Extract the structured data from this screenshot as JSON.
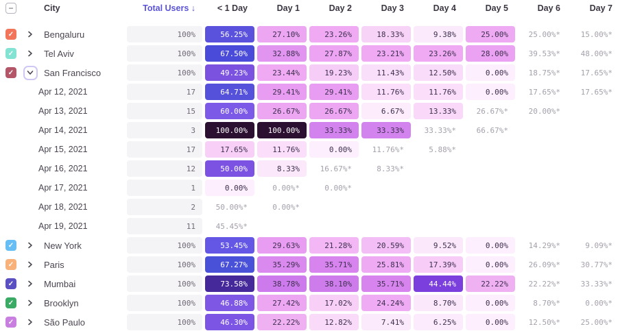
{
  "header": {
    "select_all": "indeterminate",
    "select_all_glyph": "−",
    "city_label": "City",
    "total_label": "Total Users ↓",
    "day_columns": [
      "< 1 Day",
      "Day 1",
      "Day 2",
      "Day 3",
      "Day 4",
      "Day 5",
      "Day 6",
      "Day 7"
    ],
    "accent_color": "#5a53d8"
  },
  "rows": [
    {
      "type": "city",
      "label": "Bengaluru",
      "checkbox_color": "#f2745b",
      "expanded": false,
      "total": "100%",
      "cells": [
        {
          "t": "56.25%",
          "bg": "#5a52dd",
          "fg": "#ffffff"
        },
        {
          "t": "27.10%",
          "bg": "#eda6f2"
        },
        {
          "t": "23.26%",
          "bg": "#efaaf3"
        },
        {
          "t": "18.33%",
          "bg": "#f8d3f8"
        },
        {
          "t": "9.38%",
          "bg": "#fbe9fc"
        },
        {
          "t": "25.00%",
          "bg": "#eeaaf2"
        },
        {
          "t": "25.00%*",
          "star": true
        },
        {
          "t": "15.00%*",
          "star": true
        }
      ]
    },
    {
      "type": "city",
      "label": "Tel Aviv",
      "checkbox_color": "#82e3d2",
      "expanded": false,
      "total": "100%",
      "cells": [
        {
          "t": "67.50%",
          "bg": "#4a4bd8",
          "fg": "#ffffff"
        },
        {
          "t": "32.88%",
          "bg": "#e294f1"
        },
        {
          "t": "27.87%",
          "bg": "#eda4f2"
        },
        {
          "t": "23.21%",
          "bg": "#efaaf3"
        },
        {
          "t": "23.26%",
          "bg": "#efaaf3"
        },
        {
          "t": "28.00%",
          "bg": "#eca2f2"
        },
        {
          "t": "39.53%*",
          "star": true
        },
        {
          "t": "48.00%*",
          "star": true
        }
      ]
    },
    {
      "type": "city",
      "label": "San Francisco",
      "checkbox_color": "#b25668",
      "expanded": true,
      "total": "100%",
      "cells": [
        {
          "t": "49.23%",
          "bg": "#7b51e0",
          "fg": "#ffffff"
        },
        {
          "t": "23.44%",
          "bg": "#efaaf3"
        },
        {
          "t": "19.23%",
          "bg": "#f6cdf7"
        },
        {
          "t": "11.43%",
          "bg": "#fadffa"
        },
        {
          "t": "12.50%",
          "bg": "#f9dcf9"
        },
        {
          "t": "0.00%",
          "bg": "#fdeffd"
        },
        {
          "t": "18.75%*",
          "star": true
        },
        {
          "t": "17.65%*",
          "star": true
        }
      ]
    },
    {
      "type": "date",
      "label": "Apr 12, 2021",
      "total": "17",
      "cells": [
        {
          "t": "64.71%",
          "bg": "#5551da",
          "fg": "#ffffff"
        },
        {
          "t": "29.41%",
          "bg": "#e99df2"
        },
        {
          "t": "29.41%",
          "bg": "#e99df2"
        },
        {
          "t": "11.76%",
          "bg": "#fadefa"
        },
        {
          "t": "11.76%",
          "bg": "#fadefa"
        },
        {
          "t": "0.00%",
          "bg": "#fdeffd"
        },
        {
          "t": "17.65%*",
          "star": true
        },
        {
          "t": "17.65%*",
          "star": true
        }
      ]
    },
    {
      "type": "date",
      "label": "Apr 13, 2021",
      "total": "15",
      "cells": [
        {
          "t": "60.00%",
          "bg": "#7c59e7",
          "fg": "#ffffff"
        },
        {
          "t": "26.67%",
          "bg": "#eda6f2"
        },
        {
          "t": "26.67%",
          "bg": "#eda6f2"
        },
        {
          "t": "6.67%",
          "bg": "#fcecfc"
        },
        {
          "t": "13.33%",
          "bg": "#f9d8f9"
        },
        {
          "t": "26.67%*",
          "star": true
        },
        {
          "t": "20.00%*",
          "star": true
        },
        null
      ]
    },
    {
      "type": "date",
      "label": "Apr 14, 2021",
      "total": "3",
      "cells": [
        {
          "t": "100.00%",
          "bg": "#2b1032",
          "fg": "#ffffff"
        },
        {
          "t": "100.00%",
          "bg": "#2b1032",
          "fg": "#ffffff"
        },
        {
          "t": "33.33%",
          "bg": "#d383ee"
        },
        {
          "t": "33.33%",
          "bg": "#d383ee"
        },
        {
          "t": "33.33%*",
          "star": true
        },
        {
          "t": "66.67%*",
          "star": true
        },
        null,
        null
      ]
    },
    {
      "type": "date",
      "label": "Apr 15, 2021",
      "total": "17",
      "cells": [
        {
          "t": "17.65%",
          "bg": "#f7cff7"
        },
        {
          "t": "11.76%",
          "bg": "#fadefa"
        },
        {
          "t": "0.00%",
          "bg": "#fdeffd"
        },
        {
          "t": "11.76%*",
          "star": true
        },
        {
          "t": "5.88%*",
          "star": true
        },
        null,
        null,
        null
      ]
    },
    {
      "type": "date",
      "label": "Apr 16, 2021",
      "total": "12",
      "cells": [
        {
          "t": "50.00%",
          "bg": "#7c52e3",
          "fg": "#ffffff"
        },
        {
          "t": "8.33%",
          "bg": "#fbe9fb"
        },
        {
          "t": "16.67%*",
          "star": true
        },
        {
          "t": "8.33%*",
          "star": true
        },
        null,
        null,
        null,
        null
      ]
    },
    {
      "type": "date",
      "label": "Apr 17, 2021",
      "total": "1",
      "cells": [
        {
          "t": "0.00%",
          "bg": "#fdeffd"
        },
        {
          "t": "0.00%*",
          "star": true
        },
        {
          "t": "0.00%*",
          "star": true
        },
        null,
        null,
        null,
        null,
        null
      ]
    },
    {
      "type": "date",
      "label": "Apr 18, 2021",
      "total": "2",
      "cells": [
        {
          "t": "50.00%*",
          "star": true
        },
        {
          "t": "0.00%*",
          "star": true
        },
        null,
        null,
        null,
        null,
        null,
        null
      ]
    },
    {
      "type": "date",
      "label": "Apr 19, 2021",
      "total": "11",
      "cells": [
        {
          "t": "45.45%*",
          "star": true
        },
        null,
        null,
        null,
        null,
        null,
        null,
        null
      ]
    },
    {
      "type": "city",
      "label": "New York",
      "checkbox_color": "#66bef5",
      "expanded": false,
      "total": "100%",
      "cells": [
        {
          "t": "53.45%",
          "bg": "#6457e5",
          "fg": "#ffffff"
        },
        {
          "t": "29.63%",
          "bg": "#e99df2"
        },
        {
          "t": "21.28%",
          "bg": "#f2b7f4"
        },
        {
          "t": "20.59%",
          "bg": "#f3bef5"
        },
        {
          "t": "9.52%",
          "bg": "#fbe8fb"
        },
        {
          "t": "0.00%",
          "bg": "#fdeffd"
        },
        {
          "t": "14.29%*",
          "star": true
        },
        {
          "t": "9.09%*",
          "star": true
        }
      ]
    },
    {
      "type": "city",
      "label": "Paris",
      "checkbox_color": "#f8b179",
      "expanded": false,
      "total": "100%",
      "cells": [
        {
          "t": "67.27%",
          "bg": "#4a51d9",
          "fg": "#ffffff"
        },
        {
          "t": "35.29%",
          "bg": "#da89ef"
        },
        {
          "t": "35.71%",
          "bg": "#d884ee"
        },
        {
          "t": "25.81%",
          "bg": "#eeabf3"
        },
        {
          "t": "17.39%",
          "bg": "#f7cdf7"
        },
        {
          "t": "0.00%",
          "bg": "#fdeffd"
        },
        {
          "t": "26.09%*",
          "star": true
        },
        {
          "t": "30.77%*",
          "star": true
        }
      ]
    },
    {
      "type": "city",
      "label": "Mumbai",
      "checkbox_color": "#5b50c2",
      "expanded": false,
      "total": "100%",
      "cells": [
        {
          "t": "73.58%",
          "bg": "#45289a",
          "fg": "#ffffff"
        },
        {
          "t": "38.78%",
          "bg": "#cd7bec"
        },
        {
          "t": "38.10%",
          "bg": "#ce7cec"
        },
        {
          "t": "35.71%",
          "bg": "#d884ee"
        },
        {
          "t": "44.44%",
          "bg": "#7a3fdd",
          "fg": "#ffffff"
        },
        {
          "t": "22.22%",
          "bg": "#f0b1f3"
        },
        {
          "t": "22.22%*",
          "star": true
        },
        {
          "t": "33.33%*",
          "star": true
        }
      ]
    },
    {
      "type": "city",
      "label": "Brooklyn",
      "checkbox_color": "#3aaa64",
      "expanded": false,
      "total": "100%",
      "cells": [
        {
          "t": "46.88%",
          "bg": "#7e57e5",
          "fg": "#ffffff"
        },
        {
          "t": "27.42%",
          "bg": "#eda6f2"
        },
        {
          "t": "17.02%",
          "bg": "#f7cff7"
        },
        {
          "t": "24.24%",
          "bg": "#efabf3"
        },
        {
          "t": "8.70%",
          "bg": "#fbe8fb"
        },
        {
          "t": "0.00%",
          "bg": "#fdeffd"
        },
        {
          "t": "8.70%*",
          "star": true
        },
        {
          "t": "0.00%*",
          "star": true
        }
      ]
    },
    {
      "type": "city",
      "label": "São Paulo",
      "checkbox_color": "#c97fe0",
      "expanded": false,
      "total": "100%",
      "cells": [
        {
          "t": "46.30%",
          "bg": "#7d55e4",
          "fg": "#ffffff"
        },
        {
          "t": "22.22%",
          "bg": "#f0b1f3"
        },
        {
          "t": "12.82%",
          "bg": "#f9dbf9"
        },
        {
          "t": "7.41%",
          "bg": "#fbeafb"
        },
        {
          "t": "6.25%",
          "bg": "#fcebfc"
        },
        {
          "t": "0.00%",
          "bg": "#fdeffd"
        },
        {
          "t": "12.50%*",
          "star": true
        },
        {
          "t": "25.00%*",
          "star": true
        }
      ]
    }
  ]
}
